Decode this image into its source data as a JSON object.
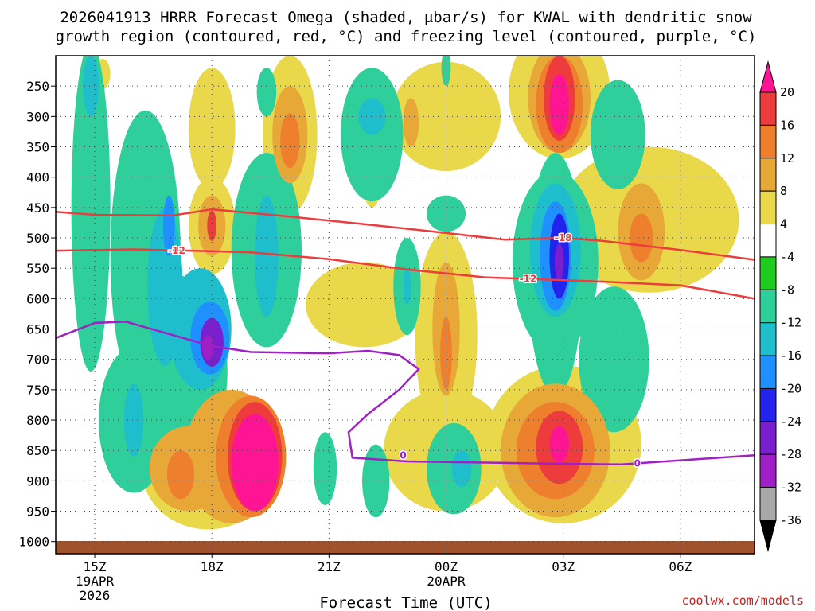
{
  "chart_data": {
    "type": "heatmap",
    "title_line1": "2026041913 HRRR Forecast Omega (shaded, μbar/s) for KWAL with dendritic snow",
    "title_line2": "growth region (contoured, red, °C) and freezing level (contoured, purple, °C)",
    "xlabel": "Forecast Time (UTC)",
    "credit": "coolwx.com/models",
    "x_ticks": [
      {
        "hour": 15,
        "label": "15Z",
        "sub1": "19APR",
        "sub2": "2026"
      },
      {
        "hour": 18,
        "label": "18Z",
        "sub1": "",
        "sub2": ""
      },
      {
        "hour": 21,
        "label": "21Z",
        "sub1": "",
        "sub2": ""
      },
      {
        "hour": 24,
        "label": "00Z",
        "sub1": "20APR",
        "sub2": ""
      },
      {
        "hour": 27,
        "label": "03Z",
        "sub1": "",
        "sub2": ""
      },
      {
        "hour": 30,
        "label": "06Z",
        "sub1": "",
        "sub2": ""
      }
    ],
    "x_range_hours": [
      14.0,
      31.9
    ],
    "y_ticks": [
      250,
      300,
      350,
      400,
      450,
      500,
      550,
      600,
      650,
      700,
      750,
      800,
      850,
      900,
      950,
      1000
    ],
    "y_range_hPa": [
      200,
      1020
    ],
    "colorbar": {
      "labels": [
        20,
        16,
        12,
        8,
        4,
        -4,
        -8,
        -12,
        -16,
        -20,
        -24,
        -28,
        -32,
        -36
      ],
      "colors": [
        "#ff1493",
        "#ee3b3b",
        "#ee7f2d",
        "#e8a838",
        "#e8d84a",
        "#ffffff",
        "#1ecb1e",
        "#2ecf9a",
        "#1ebecd",
        "#1e90ff",
        "#2323ee",
        "#7a1fd0",
        "#a020c8",
        "#a8a8a8",
        "#000000"
      ]
    },
    "dgz_contours": [
      {
        "label": "-12",
        "color": "#ee3b3b",
        "points": [
          [
            14,
            521
          ],
          [
            16,
            519
          ],
          [
            18,
            522
          ],
          [
            19,
            524
          ],
          [
            21,
            535
          ],
          [
            23,
            552
          ],
          [
            25,
            565
          ],
          [
            28,
            572
          ],
          [
            30,
            578
          ],
          [
            31.9,
            600
          ]
        ],
        "labels_at": [
          17.1,
          26.1
        ]
      },
      {
        "label": "-18",
        "color": "#ee3b3b",
        "points": [
          [
            14,
            457
          ],
          [
            15,
            462
          ],
          [
            17,
            463
          ],
          [
            18,
            453
          ],
          [
            20,
            465
          ],
          [
            22,
            478
          ],
          [
            24,
            492
          ],
          [
            25.5,
            503
          ],
          [
            27,
            500
          ],
          [
            28,
            505
          ],
          [
            30,
            520
          ],
          [
            31.9,
            536
          ]
        ],
        "labels_at": [
          27.0
        ]
      }
    ],
    "freezing_level": {
      "label": "0",
      "color": "#a020c8",
      "points": [
        [
          14,
          665
        ],
        [
          15,
          640
        ],
        [
          15.8,
          638
        ],
        [
          17,
          660
        ],
        [
          18,
          678
        ],
        [
          19,
          688
        ],
        [
          21,
          690
        ],
        [
          22,
          686
        ],
        [
          22.8,
          693
        ],
        [
          23.3,
          716
        ],
        [
          22.8,
          750
        ],
        [
          22,
          790
        ],
        [
          21.5,
          820
        ],
        [
          21.6,
          862
        ],
        [
          23,
          868
        ],
        [
          25,
          870
        ],
        [
          27,
          872
        ],
        [
          28.5,
          873
        ],
        [
          31.9,
          858
        ]
      ],
      "labels_at": [
        22.9,
        28.9
      ]
    },
    "omega_blobs": [
      {
        "h": 14.9,
        "p": 450,
        "hw": 0.5,
        "hp": 270,
        "v": -8
      },
      {
        "h": 14.9,
        "p": 250,
        "hw": 0.2,
        "hp": 50,
        "v": -12
      },
      {
        "h": 15.2,
        "p": 230,
        "hw": 0.2,
        "hp": 25,
        "v": 4
      },
      {
        "h": 15.0,
        "p": 460,
        "hw": 0.15,
        "hp": 60,
        "v": 4
      },
      {
        "h": 16.3,
        "p": 530,
        "hw": 0.9,
        "hp": 240,
        "v": -8
      },
      {
        "h": 17.0,
        "p": 720,
        "hw": 1.4,
        "hp": 160,
        "v": -8
      },
      {
        "h": 16.0,
        "p": 800,
        "hw": 0.9,
        "hp": 120,
        "v": -8
      },
      {
        "h": 16.8,
        "p": 580,
        "hw": 0.45,
        "hp": 130,
        "v": -12
      },
      {
        "h": 16.0,
        "p": 800,
        "hw": 0.25,
        "hp": 60,
        "v": -12
      },
      {
        "h": 16.9,
        "p": 480,
        "hw": 0.15,
        "hp": 50,
        "v": -16
      },
      {
        "h": 17.7,
        "p": 650,
        "hw": 0.8,
        "hp": 100,
        "v": -12
      },
      {
        "h": 17.95,
        "p": 665,
        "hw": 0.5,
        "hp": 60,
        "v": -16
      },
      {
        "h": 18.0,
        "p": 672,
        "hw": 0.3,
        "hp": 40,
        "v": -24
      },
      {
        "h": 17.9,
        "p": 680,
        "hw": 0.15,
        "hp": 20,
        "v": -28
      },
      {
        "h": 19.4,
        "p": 520,
        "hw": 0.9,
        "hp": 160,
        "v": -8
      },
      {
        "h": 19.4,
        "p": 530,
        "hw": 0.3,
        "hp": 100,
        "v": -12
      },
      {
        "h": 19.4,
        "p": 260,
        "hw": 0.25,
        "hp": 40,
        "v": -8
      },
      {
        "h": 18.0,
        "p": 320,
        "hw": 0.6,
        "hp": 100,
        "v": 4
      },
      {
        "h": 18.0,
        "p": 480,
        "hw": 0.6,
        "hp": 80,
        "v": 4
      },
      {
        "h": 18.0,
        "p": 480,
        "hw": 0.35,
        "hp": 50,
        "v": 8
      },
      {
        "h": 18.0,
        "p": 480,
        "hw": 0.12,
        "hp": 25,
        "v": 16
      },
      {
        "h": 20.0,
        "p": 330,
        "hw": 0.7,
        "hp": 130,
        "v": 4
      },
      {
        "h": 20.0,
        "p": 330,
        "hw": 0.45,
        "hp": 80,
        "v": 8
      },
      {
        "h": 20.0,
        "p": 340,
        "hw": 0.25,
        "hp": 45,
        "v": 12
      },
      {
        "h": 22.1,
        "p": 330,
        "hw": 0.8,
        "hp": 110,
        "v": -8
      },
      {
        "h": 22.1,
        "p": 300,
        "hw": 0.35,
        "hp": 30,
        "v": -12
      },
      {
        "h": 24.0,
        "p": 300,
        "hw": 1.4,
        "hp": 90,
        "v": 4
      },
      {
        "h": 23.1,
        "p": 310,
        "hw": 0.2,
        "hp": 40,
        "v": 8
      },
      {
        "h": 22.1,
        "p": 400,
        "hw": 0.25,
        "hp": 50,
        "v": 4
      },
      {
        "h": 24.0,
        "p": 220,
        "hw": 0.12,
        "hp": 30,
        "v": -8
      },
      {
        "h": 24.0,
        "p": 460,
        "hw": 0.5,
        "hp": 30,
        "v": -8
      },
      {
        "h": 21.9,
        "p": 610,
        "hw": 1.5,
        "hp": 70,
        "v": 4
      },
      {
        "h": 23.0,
        "p": 580,
        "hw": 0.35,
        "hp": 80,
        "v": -8
      },
      {
        "h": 23.0,
        "p": 580,
        "hw": 0.1,
        "hp": 30,
        "v": -12
      },
      {
        "h": 24.0,
        "p": 660,
        "hw": 0.8,
        "hp": 170,
        "v": 4
      },
      {
        "h": 24.0,
        "p": 650,
        "hw": 0.35,
        "hp": 110,
        "v": 8
      },
      {
        "h": 24.0,
        "p": 690,
        "hw": 0.15,
        "hp": 60,
        "v": 12
      },
      {
        "h": 24.0,
        "p": 850,
        "hw": 1.6,
        "hp": 100,
        "v": 4
      },
      {
        "h": 24.2,
        "p": 880,
        "hw": 0.7,
        "hp": 75,
        "v": -8
      },
      {
        "h": 24.4,
        "p": 880,
        "hw": 0.25,
        "hp": 30,
        "v": -12
      },
      {
        "h": 22.2,
        "p": 900,
        "hw": 0.35,
        "hp": 60,
        "v": -8
      },
      {
        "h": 20.9,
        "p": 880,
        "hw": 0.3,
        "hp": 60,
        "v": -8
      },
      {
        "h": 26.9,
        "p": 260,
        "hw": 1.3,
        "hp": 110,
        "v": 4
      },
      {
        "h": 26.9,
        "p": 270,
        "hw": 0.8,
        "hp": 90,
        "v": 8
      },
      {
        "h": 26.9,
        "p": 280,
        "hw": 0.6,
        "hp": 80,
        "v": 12
      },
      {
        "h": 26.9,
        "p": 270,
        "hw": 0.4,
        "hp": 70,
        "v": 16
      },
      {
        "h": 26.9,
        "p": 280,
        "hw": 0.25,
        "hp": 50,
        "v": 20
      },
      {
        "h": 28.4,
        "p": 330,
        "hw": 0.7,
        "hp": 90,
        "v": -8
      },
      {
        "h": 29.2,
        "p": 470,
        "hw": 2.3,
        "hp": 120,
        "v": 4
      },
      {
        "h": 29.0,
        "p": 490,
        "hw": 0.6,
        "hp": 80,
        "v": 8
      },
      {
        "h": 29.0,
        "p": 500,
        "hw": 0.3,
        "hp": 40,
        "v": 12
      },
      {
        "h": 26.8,
        "p": 540,
        "hw": 1.1,
        "hp": 150,
        "v": -8
      },
      {
        "h": 26.8,
        "p": 560,
        "hw": 0.7,
        "hp": 200,
        "v": -8
      },
      {
        "h": 26.8,
        "p": 520,
        "hw": 0.65,
        "hp": 110,
        "v": -12
      },
      {
        "h": 26.8,
        "p": 530,
        "hw": 0.4,
        "hp": 90,
        "v": -16
      },
      {
        "h": 26.9,
        "p": 530,
        "hw": 0.25,
        "hp": 70,
        "v": -20
      },
      {
        "h": 26.9,
        "p": 540,
        "hw": 0.12,
        "hp": 30,
        "v": -24
      },
      {
        "h": 28.3,
        "p": 700,
        "hw": 0.9,
        "hp": 120,
        "v": -8
      },
      {
        "h": 27.0,
        "p": 840,
        "hw": 2.0,
        "hp": 130,
        "v": 4
      },
      {
        "h": 26.8,
        "p": 850,
        "hw": 1.4,
        "hp": 110,
        "v": 8
      },
      {
        "h": 26.8,
        "p": 850,
        "hw": 1.0,
        "hp": 80,
        "v": 12
      },
      {
        "h": 26.9,
        "p": 845,
        "hw": 0.6,
        "hp": 60,
        "v": 16
      },
      {
        "h": 26.9,
        "p": 840,
        "hw": 0.25,
        "hp": 30,
        "v": 20
      },
      {
        "h": 17.9,
        "p": 880,
        "hw": 1.7,
        "hp": 100,
        "v": 4
      },
      {
        "h": 17.4,
        "p": 880,
        "hw": 1.0,
        "hp": 70,
        "v": 8
      },
      {
        "h": 18.5,
        "p": 860,
        "hw": 1.2,
        "hp": 110,
        "v": 8
      },
      {
        "h": 19.0,
        "p": 860,
        "hw": 0.9,
        "hp": 100,
        "v": 12
      },
      {
        "h": 19.1,
        "p": 860,
        "hw": 0.7,
        "hp": 90,
        "v": 16
      },
      {
        "h": 19.1,
        "p": 870,
        "hw": 0.6,
        "hp": 80,
        "v": 20
      },
      {
        "h": 17.2,
        "p": 890,
        "hw": 0.35,
        "hp": 40,
        "v": 12
      }
    ]
  }
}
